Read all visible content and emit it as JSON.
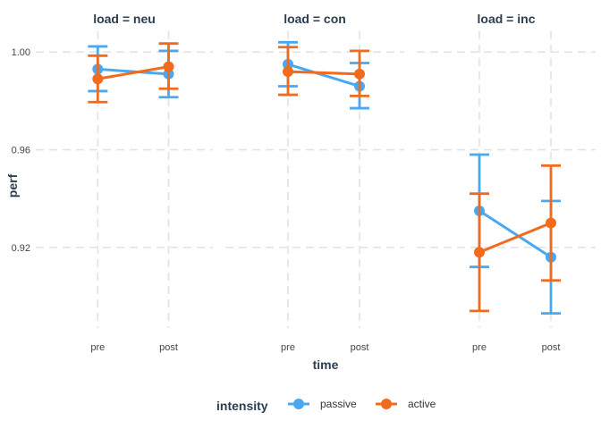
{
  "chart_data": {
    "type": "line",
    "xlabel": "time",
    "ylabel": "perf",
    "x": [
      "pre",
      "post"
    ],
    "ylim": [
      0.887,
      1.0085
    ],
    "yticks": [
      0.92,
      0.96,
      1.0
    ],
    "ytick_labels": [
      "0.92",
      "0.96",
      "1.00"
    ],
    "grid": true,
    "legend": {
      "title": "intensity",
      "position": "bottom",
      "entries": [
        "passive",
        "active"
      ]
    },
    "colors": {
      "passive": "#4aa8f0",
      "active": "#f26b1d",
      "grid": "#e3e3e3",
      "text": "#2c3e50"
    },
    "facets": [
      {
        "label": "load = neu",
        "series": [
          {
            "name": "passive",
            "values": [
              0.993,
              0.991
            ],
            "ymin": [
              0.984,
              0.9815
            ],
            "ymax": [
              1.0023,
              1.0005
            ]
          },
          {
            "name": "active",
            "values": [
              0.989,
              0.994
            ],
            "ymin": [
              0.9795,
              0.985
            ],
            "ymax": [
              0.9985,
              1.0035
            ]
          }
        ]
      },
      {
        "label": "load = con",
        "series": [
          {
            "name": "passive",
            "values": [
              0.995,
              0.986
            ],
            "ymin": [
              0.986,
              0.977
            ],
            "ymax": [
              1.004,
              0.9955
            ]
          },
          {
            "name": "active",
            "values": [
              0.992,
              0.991
            ],
            "ymin": [
              0.9825,
              0.982
            ],
            "ymax": [
              1.002,
              1.0005
            ]
          }
        ]
      },
      {
        "label": "load = inc",
        "series": [
          {
            "name": "passive",
            "values": [
              0.935,
              0.916
            ],
            "ymin": [
              0.912,
              0.893
            ],
            "ymax": [
              0.958,
              0.939
            ]
          },
          {
            "name": "active",
            "values": [
              0.918,
              0.93
            ],
            "ymin": [
              0.894,
              0.9065
            ],
            "ymax": [
              0.942,
              0.9535
            ]
          }
        ]
      }
    ]
  }
}
